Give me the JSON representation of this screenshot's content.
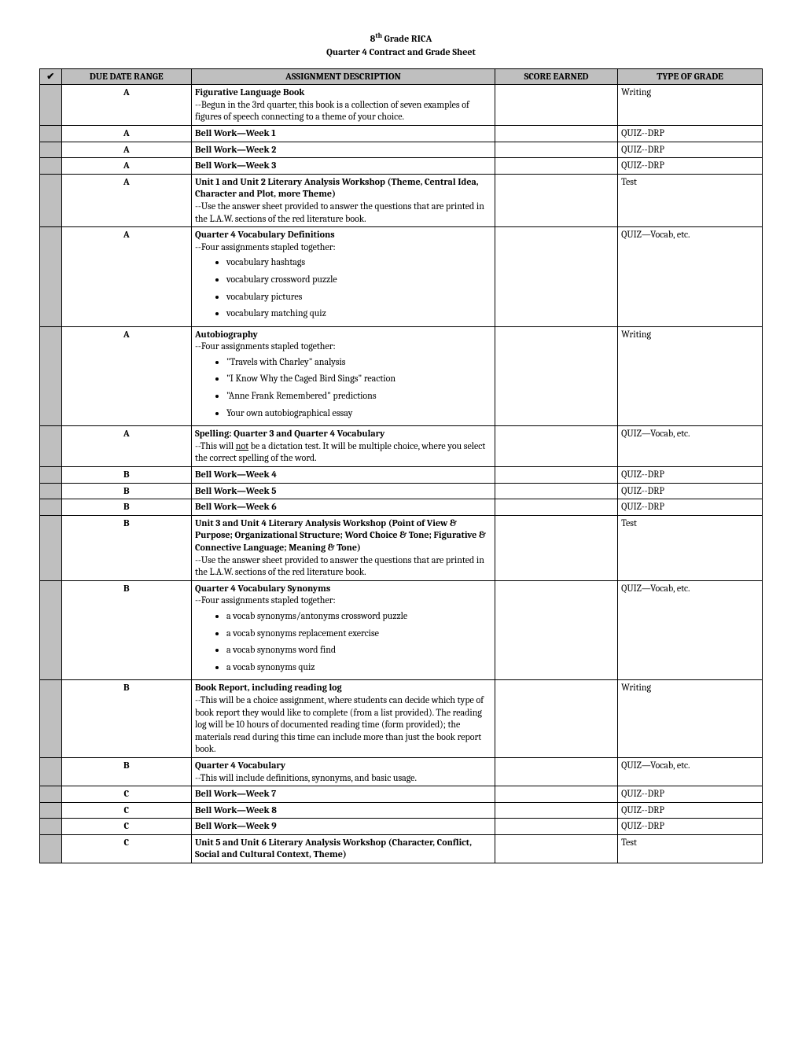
{
  "header": {
    "line1_prefix": "8",
    "line1_sup": "th",
    "line1_rest": " Grade RICA",
    "line2": "Quarter 4 Contract and Grade Sheet"
  },
  "table": {
    "headers": {
      "check": "✔",
      "date": "DUE DATE RANGE",
      "desc": "ASSIGNMENT DESCRIPTION",
      "score": "SCORE EARNED",
      "type": "TYPE OF GRADE"
    },
    "rows": [
      {
        "date": "A",
        "type": "Writing",
        "title": "Figurative Language Book",
        "body_pre": "--Begun in the 3",
        "body_sup": "rd",
        "body_post": " quarter, this book is a collection of seven examples of figures of speech connecting to a theme of your choice."
      },
      {
        "date": "A",
        "type": "QUIZ--DRP",
        "title": "Bell Work—Week 1"
      },
      {
        "date": "A",
        "type": "QUIZ--DRP",
        "title": "Bell Work—Week 2"
      },
      {
        "date": "A",
        "type": "QUIZ--DRP",
        "title": "Bell Work—Week 3"
      },
      {
        "date": "A",
        "type": "Test",
        "title": "Unit 1 and Unit 2 Literary Analysis Workshop (Theme, Central Idea, Character and Plot, more Theme)",
        "body": "--Use the answer sheet provided to answer the questions that are printed in the L.A.W. sections of the red literature book."
      },
      {
        "date": "A",
        "type": "QUIZ—Vocab, etc.",
        "title": "Quarter 4 Vocabulary Definitions",
        "body": "--Four assignments stapled together:",
        "bullets": [
          "vocabulary hashtags",
          "vocabulary crossword puzzle",
          "vocabulary pictures",
          "vocabulary matching quiz"
        ]
      },
      {
        "date": "A",
        "type": "Writing",
        "title": "Autobiography",
        "body": "--Four assignments stapled together:",
        "bullets": [
          "\"Travels with Charley\" analysis",
          "\"I Know Why the Caged Bird Sings\" reaction",
          "\"Anne Frank Remembered\" predictions",
          "Your own autobiographical essay"
        ]
      },
      {
        "date": "A",
        "type": "QUIZ—Vocab, etc.",
        "title": "Spelling: Quarter 3 and Quarter 4 Vocabulary",
        "body_pre2": "--This will ",
        "body_under": "not",
        "body_post2": " be a dictation test. It will be multiple choice, where you select the correct spelling of the word."
      },
      {
        "date": "B",
        "type": "QUIZ--DRP",
        "title": "Bell Work—Week 4"
      },
      {
        "date": "B",
        "type": "QUIZ--DRP",
        "title": "Bell Work—Week 5"
      },
      {
        "date": "B",
        "type": "QUIZ--DRP",
        "title": "Bell Work—Week 6"
      },
      {
        "date": "B",
        "type": "Test",
        "title": "Unit 3 and Unit 4 Literary Analysis Workshop (Point of View & Purpose; Organizational Structure; Word Choice & Tone; Figurative & Connective Language; Meaning & Tone)",
        "body": "--Use the answer sheet provided to answer the questions that are printed in the L.A.W. sections of the red literature book."
      },
      {
        "date": "B",
        "type": "QUIZ—Vocab, etc.",
        "title": "Quarter 4 Vocabulary Synonyms",
        "body": "--Four assignments stapled together:",
        "bullets": [
          "a vocab synonyms/antonyms crossword puzzle",
          "a vocab synonyms replacement exercise",
          "a vocab synonyms word find",
          "a vocab synonyms quiz"
        ]
      },
      {
        "date": "B",
        "type": "Writing",
        "title": "Book Report, including reading log",
        "body": "--This will be a choice assignment, where students can decide which type of book report they would like to complete (from a list provided). The reading log will be 10 hours of documented reading time (form provided); the materials read during this time can include more than just the book report book."
      },
      {
        "date": "B",
        "type": "QUIZ—Vocab, etc.",
        "title": "Quarter 4 Vocabulary",
        "body": "--This will include definitions, synonyms, and basic usage."
      },
      {
        "date": "C",
        "type": "QUIZ--DRP",
        "title": "Bell Work—Week 7"
      },
      {
        "date": "C",
        "type": "QUIZ--DRP",
        "title": "Bell Work—Week 8"
      },
      {
        "date": "C",
        "type": "QUIZ--DRP",
        "title": "Bell Work—Week 9"
      },
      {
        "date": "C",
        "type": "Test",
        "title": "Unit 5 and Unit 6 Literary Analysis Workshop (Character, Conflict, Social and Cultural Context, Theme)"
      }
    ]
  }
}
